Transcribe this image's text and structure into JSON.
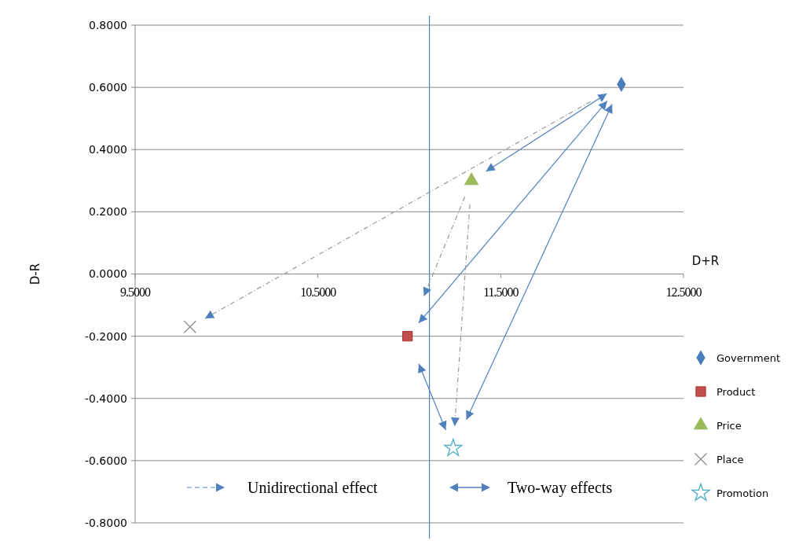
{
  "chart_data": {
    "type": "scatter",
    "xlabel": "D+R",
    "ylabel": "D-R",
    "xlim": [
      9.5,
      12.5
    ],
    "ylim": [
      -0.8,
      0.8
    ],
    "xticks": [
      {
        "value": 9.5,
        "label": "9.5000"
      },
      {
        "value": 10.5,
        "label": "10.5000"
      },
      {
        "value": 11.5,
        "label": "11.5000"
      },
      {
        "value": 12.5,
        "label": "12.5000"
      }
    ],
    "yticks": [
      {
        "value": -0.8,
        "label": "-0.8000"
      },
      {
        "value": -0.6,
        "label": "-0.6000"
      },
      {
        "value": -0.4,
        "label": "-0.4000"
      },
      {
        "value": -0.2,
        "label": "-0.2000"
      },
      {
        "value": 0,
        "label": "0.0000"
      },
      {
        "value": 0.2,
        "label": "0.2000"
      },
      {
        "value": 0.4,
        "label": "0.4000"
      },
      {
        "value": 0.6,
        "label": "0.6000"
      },
      {
        "value": 0.8,
        "label": "0.8000"
      }
    ],
    "grid": "y",
    "legend": "right",
    "series": [
      {
        "name": "Government",
        "color": "#4a7ebb",
        "marker": "diamond",
        "x": [
          12.16
        ],
        "values": [
          0.61
        ]
      },
      {
        "name": "Product",
        "color": "#c0504d",
        "marker": "square",
        "x": [
          10.99
        ],
        "values": [
          -0.2
        ]
      },
      {
        "name": "Price",
        "color": "#9bbb59",
        "marker": "triangle",
        "x": [
          11.34
        ],
        "values": [
          0.3
        ]
      },
      {
        "name": "Place",
        "color": "#8c8c8c",
        "marker": "cross",
        "x": [
          9.8
        ],
        "values": [
          -0.17
        ]
      },
      {
        "name": "Promotion",
        "color": "#4bacc6",
        "marker": "star",
        "x": [
          11.24
        ],
        "values": [
          -0.56
        ]
      }
    ],
    "ref_lines": [
      {
        "axis": "x",
        "value": 11.11,
        "color": "#4f81bd"
      }
    ],
    "annotations": [
      "Unidirectional effect",
      "Two-way effects"
    ]
  }
}
